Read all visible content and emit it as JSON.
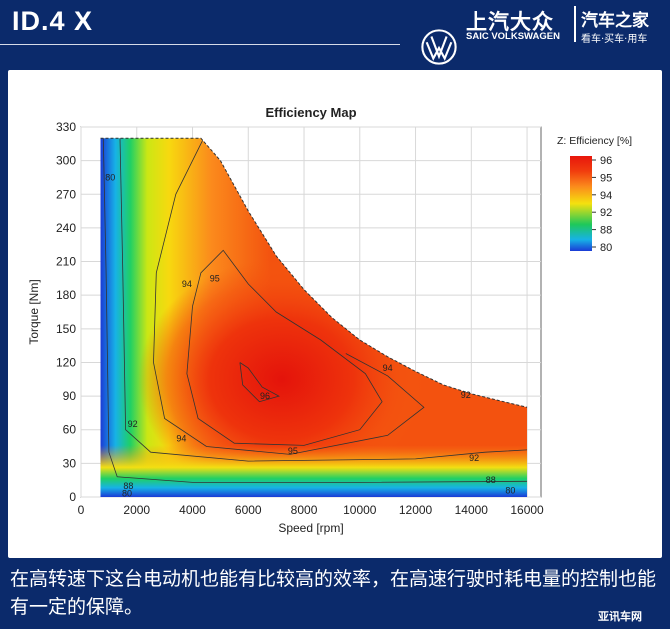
{
  "header": {
    "model": "ID.4 X",
    "brand_cn": "上汽大众",
    "brand_en": "SAIC VOLKSWAGEN",
    "site_name": "汽车之家",
    "site_slogan": "看车·买车·用车"
  },
  "caption": "在高转速下这台电动机也能有比较高的效率，在高速行驶时耗电量的控制也能有一定的保障。",
  "watermark": "亚讯车网",
  "chart_data": {
    "type": "heatmap",
    "title": "Efficiency Map",
    "xlabel": "Speed [rpm]",
    "ylabel": "Torque [Nm]",
    "xlim": [
      0,
      16500
    ],
    "ylim": [
      0,
      330
    ],
    "xticks": [
      0,
      2000,
      4000,
      6000,
      8000,
      10000,
      12000,
      14000,
      16000
    ],
    "yticks": [
      0,
      30,
      60,
      90,
      120,
      150,
      180,
      210,
      240,
      270,
      300,
      330
    ],
    "grid": true,
    "legend": {
      "title": "Z: Efficiency [%]",
      "placement": "top-right",
      "stops": [
        {
          "value": 96,
          "color": "#e8160c"
        },
        {
          "value": 95,
          "color": "#f13d0e"
        },
        {
          "value": 94,
          "color": "#fb8a1c"
        },
        {
          "value": 92,
          "color": "#f5e10e"
        },
        {
          "value": 88,
          "color": "#1ec85a"
        },
        {
          "value": 80,
          "color": "#1a3bd6"
        }
      ]
    },
    "operating_envelope_torque_speed": [
      [
        700,
        320
      ],
      [
        4300,
        320
      ],
      [
        5000,
        300
      ],
      [
        6000,
        255
      ],
      [
        7000,
        215
      ],
      [
        8000,
        185
      ],
      [
        9000,
        160
      ],
      [
        10000,
        140
      ],
      [
        11000,
        125
      ],
      [
        12000,
        112
      ],
      [
        13000,
        100
      ],
      [
        14000,
        92
      ],
      [
        15000,
        86
      ],
      [
        16000,
        80
      ]
    ],
    "contour_labels": [
      {
        "value": "80",
        "speed": 1050,
        "torque": 285
      },
      {
        "value": "80",
        "speed": 1650,
        "torque": 3
      },
      {
        "value": "80",
        "speed": 15400,
        "torque": 6
      },
      {
        "value": "88",
        "speed": 1700,
        "torque": 10
      },
      {
        "value": "88",
        "speed": 14700,
        "torque": 15
      },
      {
        "value": "92",
        "speed": 1850,
        "torque": 65
      },
      {
        "value": "92",
        "speed": 14100,
        "torque": 35
      },
      {
        "value": "92",
        "speed": 13800,
        "torque": 91
      },
      {
        "value": "94",
        "speed": 3800,
        "torque": 190
      },
      {
        "value": "94",
        "speed": 3600,
        "torque": 52
      },
      {
        "value": "94",
        "speed": 11000,
        "torque": 115
      },
      {
        "value": "95",
        "speed": 4800,
        "torque": 195
      },
      {
        "value": "95",
        "speed": 7600,
        "torque": 41
      },
      {
        "value": "96",
        "speed": 6600,
        "torque": 90
      }
    ]
  }
}
